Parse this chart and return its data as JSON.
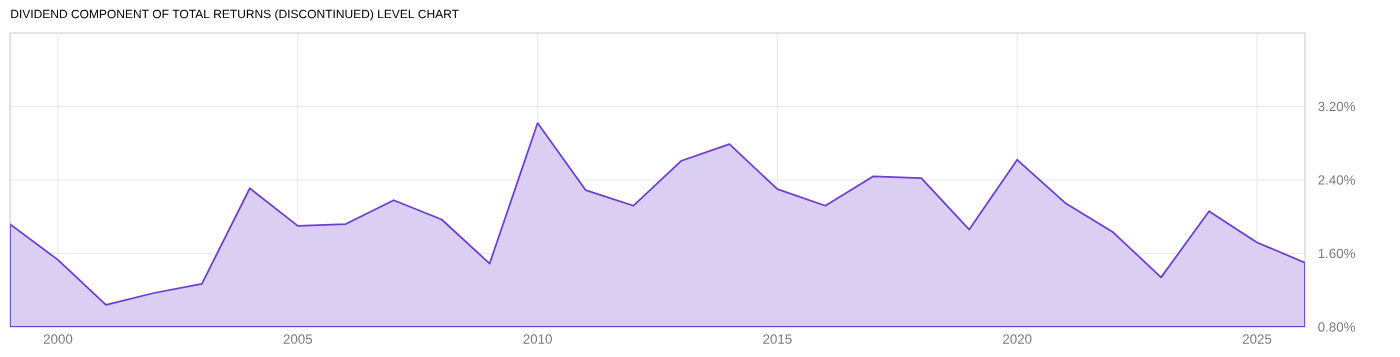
{
  "chart_data": {
    "type": "area",
    "title": "DIVIDEND COMPONENT OF TOTAL RETURNS (DISCONTINUED) LEVEL CHART",
    "x": [
      1999,
      2000,
      2001,
      2002,
      2003,
      2004,
      2005,
      2006,
      2007,
      2008,
      2009,
      2010,
      2011,
      2012,
      2013,
      2014,
      2015,
      2016,
      2017,
      2018,
      2019,
      2020,
      2021,
      2022,
      2023,
      2024,
      2025,
      2026
    ],
    "values": [
      1.92,
      1.53,
      1.04,
      1.17,
      1.27,
      2.31,
      1.9,
      1.92,
      2.18,
      1.97,
      1.49,
      3.02,
      2.29,
      2.12,
      2.61,
      2.79,
      2.3,
      2.12,
      2.44,
      2.42,
      1.86,
      2.62,
      2.15,
      1.83,
      1.34,
      2.06,
      1.72,
      1.5
    ],
    "color": "#6a3fd0",
    "xlim": [
      1999,
      2026
    ],
    "xticks": [
      2000,
      2005,
      2010,
      2015,
      2020,
      2025
    ],
    "ylim": [
      0.8,
      4.0
    ],
    "yticks": [
      {
        "value": 0.8,
        "label": "0.80%"
      },
      {
        "value": 1.6,
        "label": "1.60%"
      },
      {
        "value": 2.4,
        "label": "2.40%"
      },
      {
        "value": 3.2,
        "label": "3.20%"
      }
    ],
    "grid": true
  }
}
